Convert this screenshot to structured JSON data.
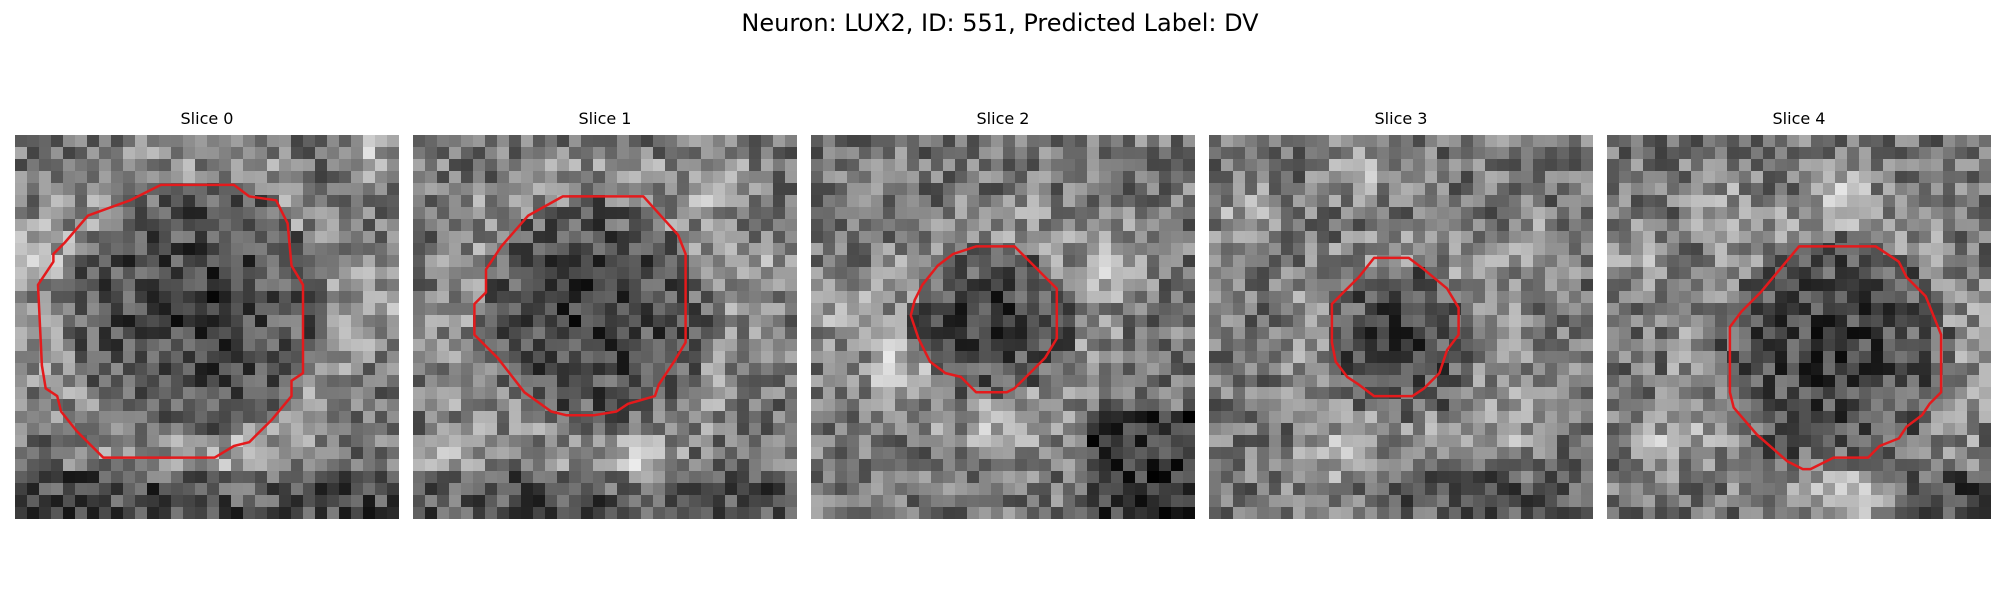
{
  "figure": {
    "title": "Neuron: LUX2, ID: 551, Predicted Label: DV"
  },
  "panels": [
    {
      "title": "Slice 0",
      "contour_color": "#e41a1c",
      "image_description_icon": "grayscale-noise-image"
    },
    {
      "title": "Slice 1",
      "contour_color": "#e41a1c",
      "image_description_icon": "grayscale-noise-image"
    },
    {
      "title": "Slice 2",
      "contour_color": "#e41a1c",
      "image_description_icon": "grayscale-noise-image"
    },
    {
      "title": "Slice 3",
      "contour_color": "#e41a1c",
      "image_description_icon": "grayscale-noise-image"
    },
    {
      "title": "Slice 4",
      "contour_color": "#e41a1c",
      "image_description_icon": "grayscale-noise-image"
    }
  ]
}
